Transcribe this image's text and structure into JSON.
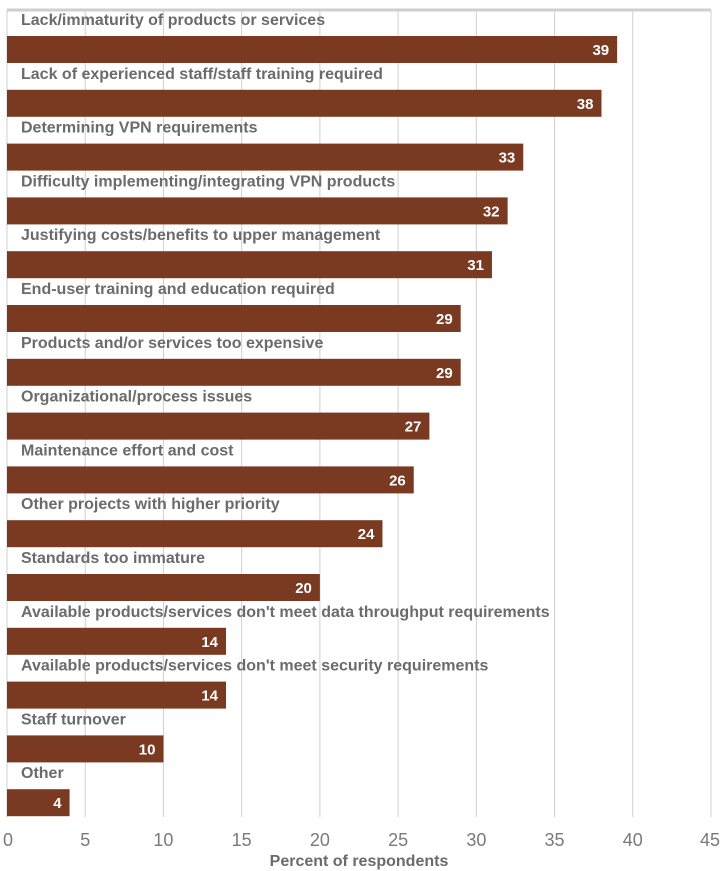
{
  "chart_data": {
    "type": "bar",
    "orientation": "horizontal",
    "categories": [
      "Lack/immaturity of products or services",
      "Lack of experienced staff/staff training required",
      "Determining VPN requirements",
      "Difficulty implementing/integrating VPN products",
      "Justifying costs/benefits to upper management",
      "End-user training and education required",
      "Products and/or services too expensive",
      "Organizational/process issues",
      "Maintenance effort and cost",
      "Other projects with higher priority",
      "Standards too immature",
      "Available products/services don't meet data throughput requirements",
      "Available products/services don't meet security requirements",
      "Staff turnover",
      "Other"
    ],
    "values": [
      39,
      38,
      33,
      32,
      31,
      29,
      29,
      27,
      26,
      24,
      20,
      14,
      14,
      10,
      4
    ],
    "value_labels": [
      "39",
      "38",
      "33",
      "32",
      "31",
      "29",
      "29",
      "27",
      "26",
      "24",
      "20",
      "14",
      "14",
      "10",
      "4"
    ],
    "xlabel": "Percent of respondents",
    "xlim": [
      0,
      45
    ],
    "xticks": [
      0,
      5,
      10,
      15,
      20,
      25,
      30,
      35,
      40,
      45
    ],
    "xtick_labels": [
      "0",
      "5",
      "10",
      "15",
      "20",
      "25",
      "30",
      "35",
      "40",
      "45"
    ],
    "grid": "vertical",
    "bar_color": "#7a3a22",
    "grid_color": "#cfcfcf"
  }
}
